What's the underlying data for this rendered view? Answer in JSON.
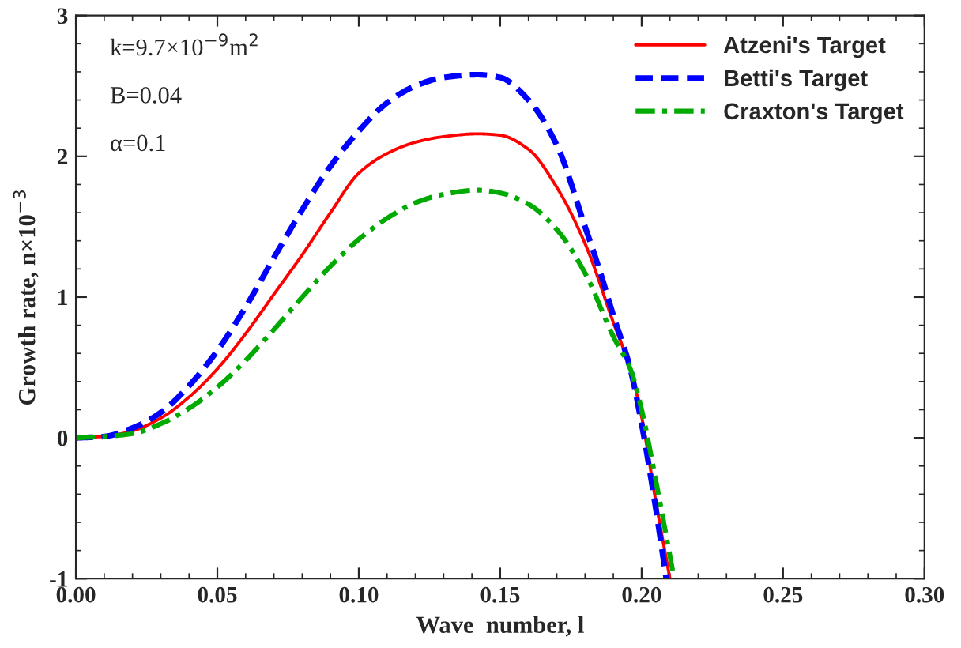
{
  "chart_data": {
    "type": "line",
    "xlabel": "Wave  number, l",
    "ylabel": "Growth rate, n×10$^{−3}$",
    "xlim": [
      0,
      0.3
    ],
    "xticks": [
      {
        "value": 0,
        "label": "0.00"
      },
      0.05,
      {
        "value": 0.1,
        "label": "0.10"
      },
      0.15,
      {
        "value": 0.2,
        "label": "0.20"
      },
      0.25,
      {
        "value": 0.3,
        "label": "0.30"
      }
    ],
    "ylim": [
      -1,
      3
    ],
    "yticks": [
      -1,
      0,
      1,
      2,
      3
    ],
    "grid": false,
    "legend": "top right",
    "annotations": [
      "k=9.7×10$^{−9}$m$^{2}$",
      "B=0.04",
      "α=0.1"
    ],
    "series": [
      {
        "name": "Atzeni's Target",
        "color": "#ff0000",
        "line_style": "solid",
        "x": [
          0,
          0.01,
          0.02,
          0.03,
          0.04,
          0.05,
          0.06,
          0.07,
          0.08,
          0.09,
          0.1,
          0.11,
          0.12,
          0.13,
          0.142,
          0.15,
          0.16,
          0.17,
          0.18,
          0.19,
          0.196,
          0.2,
          0.205,
          0.21
        ],
        "values": [
          0,
          0.01,
          0.05,
          0.14,
          0.29,
          0.49,
          0.74,
          1.02,
          1.3,
          1.6,
          1.88,
          2.02,
          2.1,
          2.14,
          2.16,
          2.15,
          2.05,
          1.78,
          1.38,
          0.82,
          0.49,
          0.15,
          -0.45,
          -1.0
        ]
      },
      {
        "name": "Betti's Target",
        "color": "#0000ff",
        "line_style": "dashed",
        "x": [
          0,
          0.01,
          0.02,
          0.03,
          0.04,
          0.05,
          0.06,
          0.07,
          0.08,
          0.09,
          0.1,
          0.11,
          0.12,
          0.13,
          0.142,
          0.15,
          0.16,
          0.17,
          0.18,
          0.185,
          0.19,
          0.196,
          0.2,
          0.205,
          0.2087
        ],
        "values": [
          0,
          0.01,
          0.07,
          0.18,
          0.37,
          0.62,
          0.93,
          1.28,
          1.62,
          1.93,
          2.18,
          2.38,
          2.5,
          2.56,
          2.58,
          2.56,
          2.4,
          2.08,
          1.5,
          1.2,
          0.87,
          0.49,
          0.1,
          -0.5,
          -1.0
        ]
      },
      {
        "name": "Craxton's Target",
        "color": "#00aa00",
        "line_style": "dashdot",
        "x": [
          0,
          0.01,
          0.02,
          0.03,
          0.04,
          0.05,
          0.06,
          0.07,
          0.08,
          0.09,
          0.1,
          0.11,
          0.12,
          0.13,
          0.142,
          0.15,
          0.16,
          0.17,
          0.18,
          0.19,
          0.196,
          0.2,
          0.205,
          0.2115
        ],
        "values": [
          0,
          0.01,
          0.03,
          0.1,
          0.21,
          0.36,
          0.55,
          0.77,
          1.0,
          1.22,
          1.41,
          1.56,
          1.67,
          1.73,
          1.76,
          1.74,
          1.66,
          1.48,
          1.17,
          0.72,
          0.49,
          0.2,
          -0.3,
          -1.0
        ]
      }
    ]
  }
}
